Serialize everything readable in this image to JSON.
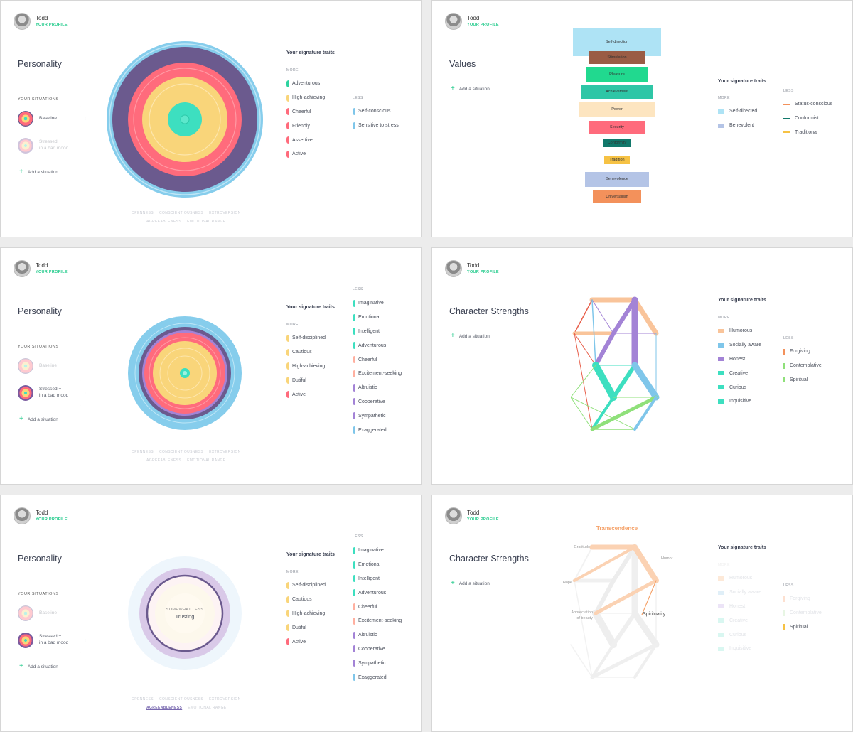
{
  "user": {
    "name": "Todd",
    "profile_label": "YOUR PROFILE"
  },
  "common": {
    "signature_traits": "Your signature traits",
    "more": "MORE",
    "less": "LESS",
    "your_situations": "YOUR SITUATIONS",
    "add_situation": "Add a situation",
    "baseline": "Baseline",
    "stressed_line1": "Stressed +",
    "stressed_line2": "in a bad mood",
    "axis": [
      "OPENNESS",
      "CONSCIENTIOUSNESS",
      "EXTROVERSION",
      "AGREEABLENESS",
      "EMOTIONAL RANGE"
    ]
  },
  "colors": {
    "accent": "#1fca8a",
    "purple": "#6b5a8e",
    "coral": "#ff6b7c",
    "yellow": "#f9d57a",
    "teal": "#3ddfc0",
    "sky": "#7fc6ea",
    "orange": "#f5a36b"
  },
  "panel1": {
    "title": "Personality",
    "more_traits": [
      {
        "label": "Adventurous",
        "color": "#2ed3a0"
      },
      {
        "label": "High-achieving",
        "color": "#f9d57a"
      },
      {
        "label": "Cheerful",
        "color": "#ff6b7c"
      },
      {
        "label": "Friendly",
        "color": "#ff6b7c"
      },
      {
        "label": "Assertive",
        "color": "#ff6b7c"
      },
      {
        "label": "Active",
        "color": "#ff6b7c"
      }
    ],
    "less_traits": [
      {
        "label": "Self-conscious",
        "color": "#7fc6ea"
      },
      {
        "label": "Sensitive to stress",
        "color": "#7fc6ea"
      }
    ]
  },
  "panel2": {
    "title": "Values",
    "bars": [
      {
        "label": "Self-direction",
        "value": 120,
        "color": "#aee3f5"
      },
      {
        "label": "Stimulation",
        "value": 78,
        "color": "#9a5c45"
      },
      {
        "label": "Pleasure",
        "value": 86,
        "color": "#21d98f"
      },
      {
        "label": "Achievement",
        "value": 98,
        "color": "#2ec6a6"
      },
      {
        "label": "Power",
        "value": 102,
        "color": "#fde5c0"
      },
      {
        "label": "Security",
        "value": 76,
        "color": "#ff6b7c"
      },
      {
        "label": "Conformity",
        "value": 38,
        "color": "#11786b"
      },
      {
        "label": "Tradition",
        "value": 34,
        "color": "#f6c244"
      },
      {
        "label": "Benevolence",
        "value": 88,
        "color": "#b4c4e6"
      },
      {
        "label": "Universalism",
        "value": 66,
        "color": "#f3915b"
      }
    ],
    "more_traits": [
      {
        "label": "Self-directed",
        "color": "#aee3f5"
      },
      {
        "label": "Benevolent",
        "color": "#b4c4e6"
      }
    ],
    "less_traits": [
      {
        "label": "Status-conscious",
        "color": "#f3915b"
      },
      {
        "label": "Conformist",
        "color": "#11786b"
      },
      {
        "label": "Traditional",
        "color": "#f6c244"
      }
    ]
  },
  "panel3": {
    "title": "Personality",
    "more_traits": [
      {
        "label": "Self-disciplined",
        "color": "#f9d57a"
      },
      {
        "label": "Cautious",
        "color": "#f9d57a"
      },
      {
        "label": "High-achieving",
        "color": "#f9d57a"
      },
      {
        "label": "Dutiful",
        "color": "#f9d57a"
      },
      {
        "label": "Active",
        "color": "#ff6b7c"
      }
    ],
    "less_traits": [
      {
        "label": "Imaginative",
        "color": "#3ddfc0"
      },
      {
        "label": "Emotional",
        "color": "#3ddfc0"
      },
      {
        "label": "Intelligent",
        "color": "#3ddfc0"
      },
      {
        "label": "Adventurous",
        "color": "#3ddfc0"
      },
      {
        "label": "Cheerful",
        "color": "#ffb0a0"
      },
      {
        "label": "Excitement-seeking",
        "color": "#ffb0a0"
      },
      {
        "label": "Altruistic",
        "color": "#a383d6"
      },
      {
        "label": "Cooperative",
        "color": "#a383d6"
      },
      {
        "label": "Sympathetic",
        "color": "#a383d6"
      },
      {
        "label": "Exaggerated",
        "color": "#7fc6ea"
      }
    ]
  },
  "panel4": {
    "title": "Character Strengths",
    "more_traits": [
      {
        "label": "Humorous",
        "color": "#f9c49a"
      },
      {
        "label": "Socially aware",
        "color": "#7fc6ea"
      },
      {
        "label": "Honest",
        "color": "#a383d6"
      },
      {
        "label": "Creative",
        "color": "#3ddfc0"
      },
      {
        "label": "Curious",
        "color": "#3ddfc0"
      },
      {
        "label": "Inquisitive",
        "color": "#3ddfc0"
      }
    ],
    "less_traits": [
      {
        "label": "Forgiving",
        "color": "#f3915b"
      },
      {
        "label": "Contemplative",
        "color": "#8fe07a"
      },
      {
        "label": "Spiritual",
        "color": "#8fe07a"
      }
    ]
  },
  "panel5": {
    "title": "Personality",
    "center_small": "SOMEWHAT LESS",
    "center_big": "Trusting",
    "more_traits": [
      {
        "label": "Self-disciplined",
        "color": "#f9d57a"
      },
      {
        "label": "Cautious",
        "color": "#f9d57a"
      },
      {
        "label": "High-achieving",
        "color": "#f9d57a"
      },
      {
        "label": "Dutiful",
        "color": "#f9d57a"
      },
      {
        "label": "Active",
        "color": "#ff6b7c"
      }
    ],
    "less_traits": [
      {
        "label": "Imaginative",
        "color": "#3ddfc0"
      },
      {
        "label": "Emotional",
        "color": "#3ddfc0"
      },
      {
        "label": "Intelligent",
        "color": "#3ddfc0"
      },
      {
        "label": "Adventurous",
        "color": "#3ddfc0"
      },
      {
        "label": "Cheerful",
        "color": "#ffb0a0"
      },
      {
        "label": "Excitement-seeking",
        "color": "#ffb0a0"
      },
      {
        "label": "Altruistic",
        "color": "#a383d6"
      },
      {
        "label": "Cooperative",
        "color": "#a383d6"
      },
      {
        "label": "Sympathetic",
        "color": "#a383d6"
      },
      {
        "label": "Exaggerated",
        "color": "#7fc6ea"
      }
    ]
  },
  "panel6": {
    "title": "Character Strengths",
    "group_title": "Transcendence",
    "labels": {
      "gratitude": "Gratitude",
      "humor": "Humor",
      "hope": "Hope",
      "appreciation1": "Appreciation",
      "appreciation2": "of beauty",
      "spirituality": "Spirituality"
    },
    "more_traits": [
      {
        "label": "Humorous",
        "color": "#fde9d8"
      },
      {
        "label": "Socially aware",
        "color": "#e0eff8"
      },
      {
        "label": "Honest",
        "color": "#ece4f7"
      },
      {
        "label": "Creative",
        "color": "#d9f7f1"
      },
      {
        "label": "Curious",
        "color": "#d9f7f1"
      },
      {
        "label": "Inquisitive",
        "color": "#d9f7f1"
      }
    ],
    "less_traits": [
      {
        "label": "Forgiving",
        "color": "#fde0d0"
      },
      {
        "label": "Contemplative",
        "color": "#e8f6e4"
      },
      {
        "label": "Spiritual",
        "color": "#f6c244"
      }
    ]
  }
}
